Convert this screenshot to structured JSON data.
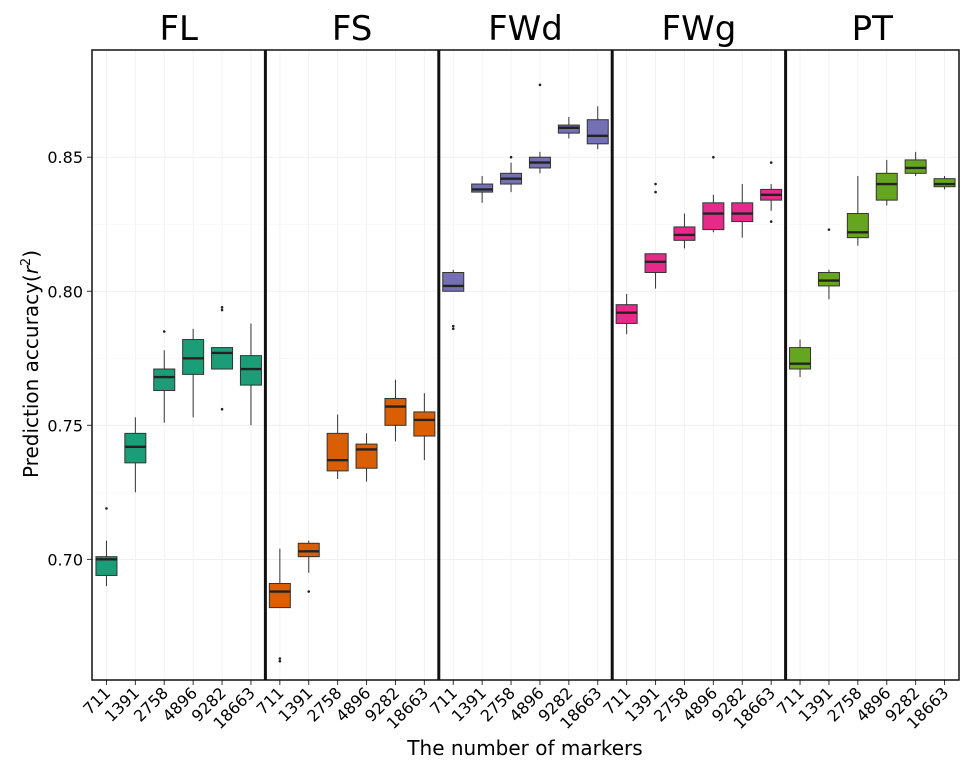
{
  "chart_data": {
    "type": "box",
    "xlabel": "The number of markers",
    "ylabel": "Prediction accuracy(r2)",
    "ylabel_parts": {
      "main": "Prediction accuracy(",
      "var": "r",
      "sup": "2",
      "close": ")"
    },
    "ylim": [
      0.655,
      0.89
    ],
    "yticks": [
      0.7,
      0.75,
      0.8,
      0.85
    ],
    "ytick_labels": [
      "0.70",
      "0.75",
      "0.80",
      "0.85"
    ],
    "categories": [
      "711",
      "1391",
      "2758",
      "4896",
      "9282",
      "18663"
    ],
    "grid": true,
    "panels": [
      {
        "name": "FL",
        "color": "#1b9e77",
        "boxes": [
          {
            "min": 0.69,
            "q1": 0.694,
            "median": 0.7,
            "q3": 0.701,
            "max": 0.707,
            "outliers": [
              0.719
            ]
          },
          {
            "min": 0.725,
            "q1": 0.736,
            "median": 0.742,
            "q3": 0.747,
            "max": 0.753,
            "outliers": []
          },
          {
            "min": 0.751,
            "q1": 0.763,
            "median": 0.768,
            "q3": 0.771,
            "max": 0.778,
            "outliers": [
              0.785
            ]
          },
          {
            "min": 0.753,
            "q1": 0.769,
            "median": 0.775,
            "q3": 0.782,
            "max": 0.786,
            "outliers": []
          },
          {
            "min": 0.771,
            "q1": 0.771,
            "median": 0.777,
            "q3": 0.779,
            "max": 0.779,
            "outliers": [
              0.793,
              0.794,
              0.756
            ]
          },
          {
            "min": 0.75,
            "q1": 0.765,
            "median": 0.771,
            "q3": 0.776,
            "max": 0.788,
            "outliers": []
          }
        ]
      },
      {
        "name": "FS",
        "color": "#d95f02",
        "boxes": [
          {
            "min": 0.682,
            "q1": 0.682,
            "median": 0.688,
            "q3": 0.691,
            "max": 0.704,
            "outliers": [
              0.663,
              0.662
            ]
          },
          {
            "min": 0.695,
            "q1": 0.701,
            "median": 0.703,
            "q3": 0.706,
            "max": 0.707,
            "outliers": [
              0.688
            ]
          },
          {
            "min": 0.73,
            "q1": 0.733,
            "median": 0.737,
            "q3": 0.747,
            "max": 0.754,
            "outliers": []
          },
          {
            "min": 0.729,
            "q1": 0.734,
            "median": 0.741,
            "q3": 0.743,
            "max": 0.747,
            "outliers": []
          },
          {
            "min": 0.744,
            "q1": 0.75,
            "median": 0.757,
            "q3": 0.76,
            "max": 0.767,
            "outliers": []
          },
          {
            "min": 0.737,
            "q1": 0.746,
            "median": 0.752,
            "q3": 0.755,
            "max": 0.762,
            "outliers": []
          }
        ]
      },
      {
        "name": "FWd",
        "color": "#7570b3",
        "boxes": [
          {
            "min": 0.8,
            "q1": 0.8,
            "median": 0.802,
            "q3": 0.807,
            "max": 0.808,
            "outliers": [
              0.787,
              0.786
            ]
          },
          {
            "min": 0.833,
            "q1": 0.837,
            "median": 0.838,
            "q3": 0.84,
            "max": 0.843,
            "outliers": []
          },
          {
            "min": 0.837,
            "q1": 0.84,
            "median": 0.842,
            "q3": 0.844,
            "max": 0.848,
            "outliers": [
              0.85
            ]
          },
          {
            "min": 0.844,
            "q1": 0.846,
            "median": 0.848,
            "q3": 0.85,
            "max": 0.852,
            "outliers": [
              0.877
            ]
          },
          {
            "min": 0.857,
            "q1": 0.859,
            "median": 0.861,
            "q3": 0.862,
            "max": 0.865,
            "outliers": []
          },
          {
            "min": 0.853,
            "q1": 0.855,
            "median": 0.858,
            "q3": 0.864,
            "max": 0.869,
            "outliers": []
          }
        ]
      },
      {
        "name": "FWg",
        "color": "#e7298a",
        "boxes": [
          {
            "min": 0.784,
            "q1": 0.788,
            "median": 0.792,
            "q3": 0.795,
            "max": 0.799,
            "outliers": []
          },
          {
            "min": 0.801,
            "q1": 0.807,
            "median": 0.811,
            "q3": 0.814,
            "max": 0.814,
            "outliers": [
              0.837,
              0.84
            ]
          },
          {
            "min": 0.816,
            "q1": 0.819,
            "median": 0.821,
            "q3": 0.824,
            "max": 0.829,
            "outliers": []
          },
          {
            "min": 0.822,
            "q1": 0.823,
            "median": 0.829,
            "q3": 0.833,
            "max": 0.836,
            "outliers": [
              0.85
            ]
          },
          {
            "min": 0.82,
            "q1": 0.826,
            "median": 0.829,
            "q3": 0.833,
            "max": 0.84,
            "outliers": []
          },
          {
            "min": 0.83,
            "q1": 0.834,
            "median": 0.836,
            "q3": 0.838,
            "max": 0.84,
            "outliers": [
              0.848,
              0.826
            ]
          }
        ]
      },
      {
        "name": "PT",
        "color": "#66a61e",
        "boxes": [
          {
            "min": 0.768,
            "q1": 0.771,
            "median": 0.773,
            "q3": 0.779,
            "max": 0.782,
            "outliers": []
          },
          {
            "min": 0.797,
            "q1": 0.802,
            "median": 0.804,
            "q3": 0.807,
            "max": 0.808,
            "outliers": [
              0.823
            ]
          },
          {
            "min": 0.817,
            "q1": 0.82,
            "median": 0.822,
            "q3": 0.829,
            "max": 0.843,
            "outliers": []
          },
          {
            "min": 0.832,
            "q1": 0.834,
            "median": 0.84,
            "q3": 0.844,
            "max": 0.849,
            "outliers": []
          },
          {
            "min": 0.843,
            "q1": 0.844,
            "median": 0.846,
            "q3": 0.849,
            "max": 0.852,
            "outliers": []
          },
          {
            "min": 0.838,
            "q1": 0.839,
            "median": 0.84,
            "q3": 0.842,
            "max": 0.843,
            "outliers": []
          }
        ]
      }
    ]
  }
}
